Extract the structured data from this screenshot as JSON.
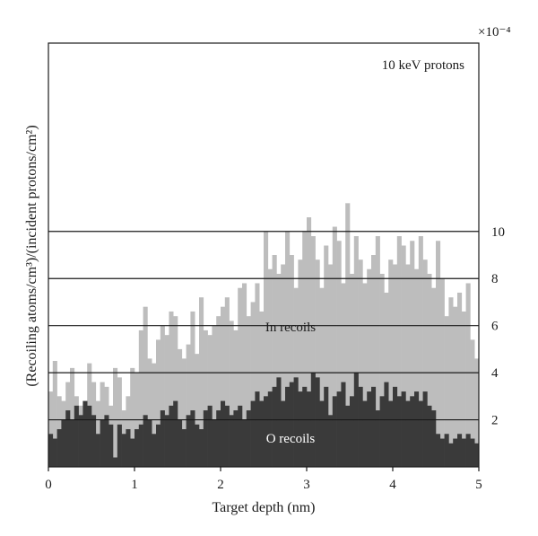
{
  "chart_data": {
    "type": "area",
    "annotation_text": "10 keV protons",
    "xlabel": "Target depth (nm)",
    "ylabel": "(Recoiling atoms/cm³)/(incident protons/cm²)",
    "y_multiplier": "×10⁻⁴",
    "xlim": [
      0,
      5
    ],
    "ylim": [
      0,
      18
    ],
    "x_ticks": [
      0,
      1,
      2,
      3,
      4,
      5
    ],
    "x_tick_labels": [
      "0",
      "1",
      "2",
      "3",
      "4",
      "5"
    ],
    "y_ticks": [
      2,
      4,
      6,
      8,
      10
    ],
    "y_tick_labels": [
      "2",
      "4",
      "6",
      "8",
      "10"
    ],
    "grid": "horizontal lines at y ticks",
    "bin_width": 0.05,
    "series": [
      {
        "name": "In recoils",
        "color": "#bdbdbd",
        "x": [
          0.0,
          0.05,
          0.1,
          0.15,
          0.2,
          0.25,
          0.3,
          0.35,
          0.4,
          0.45,
          0.5,
          0.55,
          0.6,
          0.65,
          0.7,
          0.75,
          0.8,
          0.85,
          0.9,
          0.95,
          1.0,
          1.05,
          1.1,
          1.15,
          1.2,
          1.25,
          1.3,
          1.35,
          1.4,
          1.45,
          1.5,
          1.55,
          1.6,
          1.65,
          1.7,
          1.75,
          1.8,
          1.85,
          1.9,
          1.95,
          2.0,
          2.05,
          2.1,
          2.15,
          2.2,
          2.25,
          2.3,
          2.35,
          2.4,
          2.45,
          2.5,
          2.55,
          2.6,
          2.65,
          2.7,
          2.75,
          2.8,
          2.85,
          2.9,
          2.95,
          3.0,
          3.05,
          3.1,
          3.15,
          3.2,
          3.25,
          3.3,
          3.35,
          3.4,
          3.45,
          3.5,
          3.55,
          3.6,
          3.65,
          3.7,
          3.75,
          3.8,
          3.85,
          3.9,
          3.95,
          4.0,
          4.05,
          4.1,
          4.15,
          4.2,
          4.25,
          4.3,
          4.35,
          4.4,
          4.45,
          4.5,
          4.55,
          4.6,
          4.65,
          4.7,
          4.75,
          4.8,
          4.85,
          4.9,
          4.95
        ],
        "values": [
          3.2,
          4.5,
          3.0,
          2.8,
          3.6,
          4.2,
          3.0,
          2.6,
          2.4,
          4.4,
          3.6,
          2.8,
          3.6,
          3.4,
          2.6,
          4.2,
          3.8,
          2.4,
          3.0,
          4.2,
          4.0,
          5.8,
          6.8,
          4.6,
          4.4,
          5.4,
          6.0,
          5.6,
          6.6,
          6.4,
          5.0,
          4.6,
          5.2,
          6.6,
          4.8,
          7.2,
          5.8,
          5.6,
          6.0,
          6.4,
          6.8,
          7.2,
          6.2,
          5.8,
          7.6,
          7.8,
          6.4,
          7.0,
          7.8,
          6.6,
          10.0,
          8.4,
          9.0,
          8.2,
          8.6,
          10.0,
          9.0,
          7.6,
          8.8,
          10.0,
          10.6,
          9.8,
          8.8,
          7.6,
          9.4,
          8.6,
          10.2,
          9.6,
          7.8,
          11.2,
          8.2,
          9.8,
          8.8,
          7.8,
          8.4,
          9.0,
          9.8,
          8.2,
          7.4,
          8.8,
          8.6,
          9.8,
          9.4,
          8.6,
          9.6,
          8.4,
          9.8,
          8.8,
          8.2,
          7.6,
          9.6,
          8.0,
          6.4,
          7.2,
          6.8,
          7.4,
          6.6,
          7.8,
          5.4,
          4.6
        ]
      },
      {
        "name": "O recoils",
        "color": "#3a3a3a",
        "x": [
          0.0,
          0.05,
          0.1,
          0.15,
          0.2,
          0.25,
          0.3,
          0.35,
          0.4,
          0.45,
          0.5,
          0.55,
          0.6,
          0.65,
          0.7,
          0.75,
          0.8,
          0.85,
          0.9,
          0.95,
          1.0,
          1.05,
          1.1,
          1.15,
          1.2,
          1.25,
          1.3,
          1.35,
          1.4,
          1.45,
          1.5,
          1.55,
          1.6,
          1.65,
          1.7,
          1.75,
          1.8,
          1.85,
          1.9,
          1.95,
          2.0,
          2.05,
          2.1,
          2.15,
          2.2,
          2.25,
          2.3,
          2.35,
          2.4,
          2.45,
          2.5,
          2.55,
          2.6,
          2.65,
          2.7,
          2.75,
          2.8,
          2.85,
          2.9,
          2.95,
          3.0,
          3.05,
          3.1,
          3.15,
          3.2,
          3.25,
          3.3,
          3.35,
          3.4,
          3.45,
          3.5,
          3.55,
          3.6,
          3.65,
          3.7,
          3.75,
          3.8,
          3.85,
          3.9,
          3.95,
          4.0,
          4.05,
          4.1,
          4.15,
          4.2,
          4.25,
          4.3,
          4.35,
          4.4,
          4.45,
          4.5,
          4.55,
          4.6,
          4.65,
          4.7,
          4.75,
          4.8,
          4.85,
          4.9,
          4.95
        ],
        "values": [
          1.4,
          1.2,
          1.6,
          2.0,
          2.4,
          2.0,
          2.6,
          2.2,
          2.8,
          2.6,
          2.2,
          1.4,
          2.0,
          2.2,
          1.8,
          0.4,
          1.8,
          1.4,
          1.6,
          1.2,
          1.6,
          1.8,
          2.2,
          2.0,
          1.4,
          1.8,
          2.4,
          2.2,
          2.6,
          2.8,
          2.0,
          1.6,
          2.2,
          2.4,
          1.8,
          1.6,
          2.4,
          2.6,
          2.0,
          2.4,
          2.8,
          2.6,
          2.2,
          2.4,
          2.6,
          2.0,
          2.4,
          2.8,
          3.2,
          2.8,
          3.0,
          3.2,
          3.4,
          3.8,
          2.8,
          3.4,
          3.6,
          3.8,
          3.2,
          3.4,
          3.2,
          4.0,
          3.8,
          2.8,
          3.4,
          2.2,
          3.0,
          3.2,
          3.6,
          2.6,
          3.0,
          4.0,
          3.4,
          2.8,
          3.2,
          3.4,
          2.4,
          3.0,
          3.6,
          2.8,
          3.4,
          3.0,
          3.2,
          2.8,
          3.0,
          3.2,
          2.8,
          3.2,
          2.6,
          2.4,
          1.4,
          1.2,
          1.4,
          1.0,
          1.2,
          1.4,
          1.2,
          1.4,
          1.2,
          1.0
        ]
      }
    ]
  }
}
